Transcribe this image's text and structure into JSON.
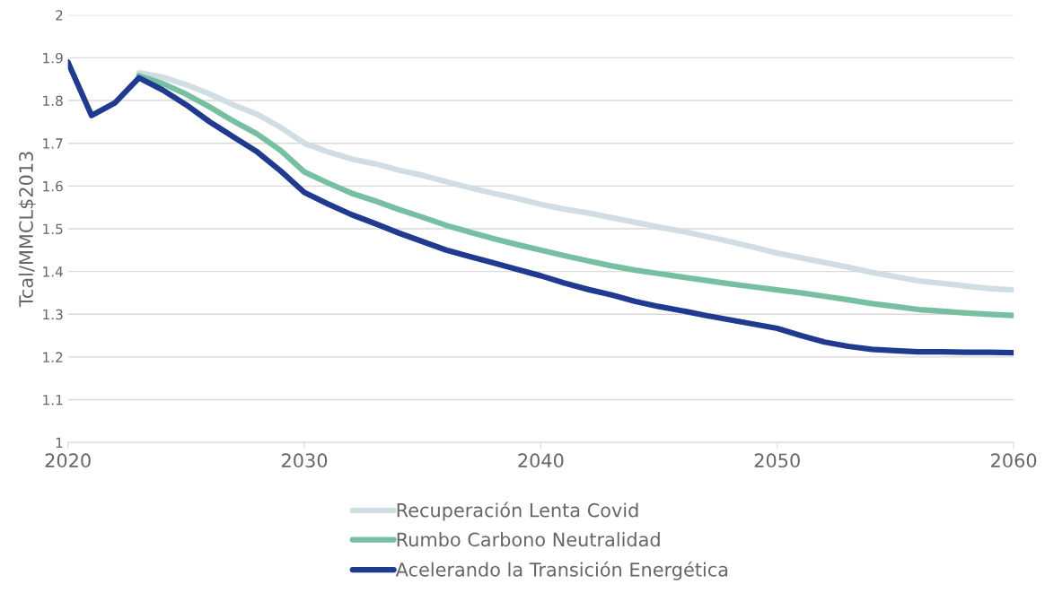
{
  "chart_data": {
    "type": "line",
    "ylabel": "Tcal/MMCL$2013",
    "xlim": [
      2020,
      2060
    ],
    "xticks": [
      2020,
      2030,
      2040,
      2050,
      2060
    ],
    "ylim": [
      1,
      2
    ],
    "yticks": [
      1,
      1.1,
      1.2,
      1.3,
      1.4,
      1.5,
      1.6,
      1.7,
      1.8,
      1.9,
      2
    ],
    "grid": "y",
    "legend": "bottom",
    "marker": "none",
    "line_style": "solid",
    "series": [
      {
        "name": "Recuperación Lenta Covid",
        "color": "#d0dde3",
        "x": [
          2023,
          2024,
          2025,
          2026,
          2027,
          2028,
          2029,
          2030,
          2031,
          2032,
          2033,
          2034,
          2035,
          2036,
          2037,
          2038,
          2039,
          2040,
          2041,
          2042,
          2043,
          2044,
          2045,
          2046,
          2047,
          2048,
          2049,
          2050,
          2051,
          2052,
          2053,
          2054,
          2055,
          2056,
          2057,
          2058,
          2059,
          2060
        ],
        "values": [
          1.865,
          1.855,
          1.837,
          1.815,
          1.79,
          1.768,
          1.737,
          1.7,
          1.68,
          1.663,
          1.652,
          1.637,
          1.625,
          1.61,
          1.596,
          1.583,
          1.571,
          1.557,
          1.546,
          1.537,
          1.526,
          1.515,
          1.504,
          1.494,
          1.482,
          1.47,
          1.457,
          1.443,
          1.432,
          1.421,
          1.41,
          1.398,
          1.388,
          1.378,
          1.372,
          1.366,
          1.36,
          1.357
        ]
      },
      {
        "name": "Rumbo Carbono Neutralidad",
        "color": "#76bfa0",
        "x": [
          2023,
          2024,
          2025,
          2026,
          2027,
          2028,
          2029,
          2030,
          2031,
          2032,
          2033,
          2034,
          2035,
          2036,
          2037,
          2038,
          2039,
          2040,
          2041,
          2042,
          2043,
          2044,
          2045,
          2046,
          2047,
          2048,
          2049,
          2050,
          2051,
          2052,
          2053,
          2054,
          2055,
          2056,
          2057,
          2058,
          2059,
          2060
        ],
        "values": [
          1.858,
          1.84,
          1.815,
          1.785,
          1.752,
          1.722,
          1.683,
          1.633,
          1.607,
          1.583,
          1.565,
          1.545,
          1.527,
          1.508,
          1.492,
          1.477,
          1.463,
          1.45,
          1.437,
          1.425,
          1.413,
          1.403,
          1.395,
          1.387,
          1.379,
          1.371,
          1.364,
          1.357,
          1.35,
          1.342,
          1.334,
          1.325,
          1.318,
          1.311,
          1.307,
          1.303,
          1.3,
          1.297
        ]
      },
      {
        "name": "Acelerando la Transición Energética",
        "color": "#1f3a8f",
        "x": [
          2020,
          2021,
          2022,
          2023,
          2024,
          2025,
          2026,
          2027,
          2028,
          2029,
          2030,
          2031,
          2032,
          2033,
          2034,
          2035,
          2036,
          2037,
          2038,
          2039,
          2040,
          2041,
          2042,
          2043,
          2044,
          2045,
          2046,
          2047,
          2048,
          2049,
          2050,
          2051,
          2052,
          2053,
          2054,
          2055,
          2056,
          2057,
          2058,
          2059,
          2060
        ],
        "values": [
          1.89,
          1.765,
          1.795,
          1.853,
          1.825,
          1.79,
          1.75,
          1.715,
          1.68,
          1.635,
          1.585,
          1.558,
          1.533,
          1.512,
          1.49,
          1.47,
          1.45,
          1.435,
          1.42,
          1.405,
          1.39,
          1.373,
          1.358,
          1.345,
          1.33,
          1.318,
          1.308,
          1.297,
          1.287,
          1.277,
          1.267,
          1.25,
          1.235,
          1.225,
          1.218,
          1.215,
          1.212,
          1.212,
          1.211,
          1.211,
          1.21
        ]
      }
    ]
  }
}
